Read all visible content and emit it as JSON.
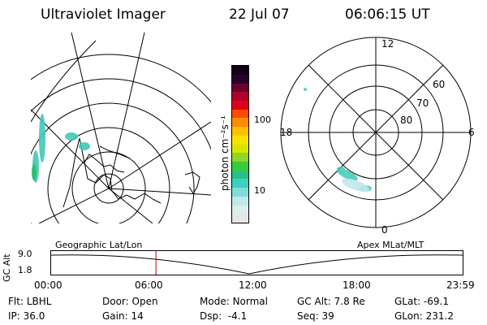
{
  "header": {
    "title": "Ultraviolet Imager",
    "date": "22 Jul 07",
    "time": "06:06:15 UT"
  },
  "colorbar": {
    "unit_label": "photon cm⁻²s⁻¹",
    "tick_100": "100",
    "tick_10": "10",
    "colors": [
      "#e6e6e6",
      "#d9eef0",
      "#bfe8ea",
      "#7fdcd6",
      "#3fcfc0",
      "#22c28a",
      "#3acb3a",
      "#8fd62a",
      "#d8e600",
      "#f6e400",
      "#ffbf00",
      "#ff8c00",
      "#ff4a00",
      "#e0001a",
      "#b00028",
      "#6a0030",
      "#2a0028",
      "#10001a"
    ]
  },
  "polar_plot": {
    "mlt_labels": {
      "top": "12",
      "left": "18",
      "right": "6",
      "bottom": "0"
    },
    "lat_labels": [
      "60",
      "70",
      "80"
    ]
  },
  "timeline": {
    "left_label": "Geographic Lat/Lon",
    "right_label": "Apex MLat/MLT",
    "axis_title": "GC Alt",
    "y_ticks": [
      "9.0",
      "1.8"
    ],
    "x_ticks": [
      "00:00",
      "06:00",
      "12:00",
      "18:00",
      "23:59"
    ],
    "marker_hour": 6.1
  },
  "info": {
    "flt_label": "Flt:",
    "flt_value": "LBHL",
    "door_label": "Door:",
    "door_value": "Open",
    "mode_label": "Mode:",
    "mode_value": "Normal",
    "gcalt_label": "GC Alt:",
    "gcalt_value": "7.8 Re",
    "glat_label": "GLat:",
    "glat_value": "-69.1",
    "ip_label": "IP:",
    "ip_value": "36.0",
    "gain_label": "Gain:",
    "gain_value": "14",
    "dsp_label": "Dsp:",
    "dsp_value": "-4.1",
    "seq_label": "Seq:",
    "seq_value": "39",
    "glon_label": "GLon:",
    "glon_value": "231.2"
  }
}
